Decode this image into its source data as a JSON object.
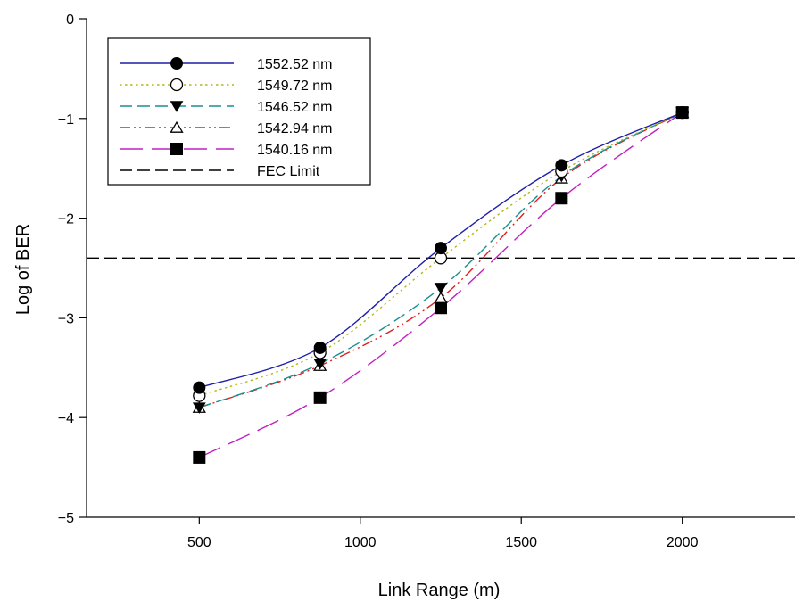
{
  "chart_data": {
    "type": "line",
    "xlabel": "Link Range (m)",
    "ylabel": "Log of BER",
    "xlim": [
      150,
      2350
    ],
    "ylim": [
      -5,
      0
    ],
    "xticks": [
      500,
      1000,
      1500,
      2000
    ],
    "yticks": [
      0,
      -1,
      -2,
      -3,
      -4,
      -5
    ],
    "xtick_labels": [
      "500",
      "1000",
      "1500",
      "2000"
    ],
    "ytick_labels": [
      "0",
      "−1",
      "−2",
      "−3",
      "−4",
      "−5"
    ],
    "x": [
      500,
      875,
      1250,
      1625,
      2000
    ],
    "grid": false,
    "legend_position": "top-left",
    "series": [
      {
        "name": "1552.52 nm",
        "values": [
          -3.7,
          -3.3,
          -2.3,
          -1.47,
          -0.94
        ],
        "color": "#1f1fa8",
        "dash": "solid",
        "marker": "filled-circle"
      },
      {
        "name": "1549.72 nm",
        "values": [
          -3.78,
          -3.35,
          -2.4,
          -1.53,
          -0.94
        ],
        "color": "#b5b51a",
        "dash": "dotted",
        "marker": "open-circle"
      },
      {
        "name": "1546.52 nm",
        "values": [
          -3.9,
          -3.46,
          -2.7,
          -1.58,
          -0.94
        ],
        "color": "#1a8f8f",
        "dash": "dashed",
        "marker": "filled-triangle-down"
      },
      {
        "name": "1542.94 nm",
        "values": [
          -3.9,
          -3.48,
          -2.8,
          -1.6,
          -0.94
        ],
        "color": "#e02020",
        "dash": "dash-dot-dot",
        "marker": "open-triangle-up"
      },
      {
        "name": "1540.16 nm",
        "values": [
          -4.4,
          -3.8,
          -2.9,
          -1.8,
          -0.94
        ],
        "color": "#c020c0",
        "dash": "long-dash",
        "marker": "filled-square"
      }
    ],
    "reference_lines": [
      {
        "name": "FEC Limit",
        "y": -2.4,
        "color": "#000000",
        "dash": "dashed"
      }
    ]
  }
}
